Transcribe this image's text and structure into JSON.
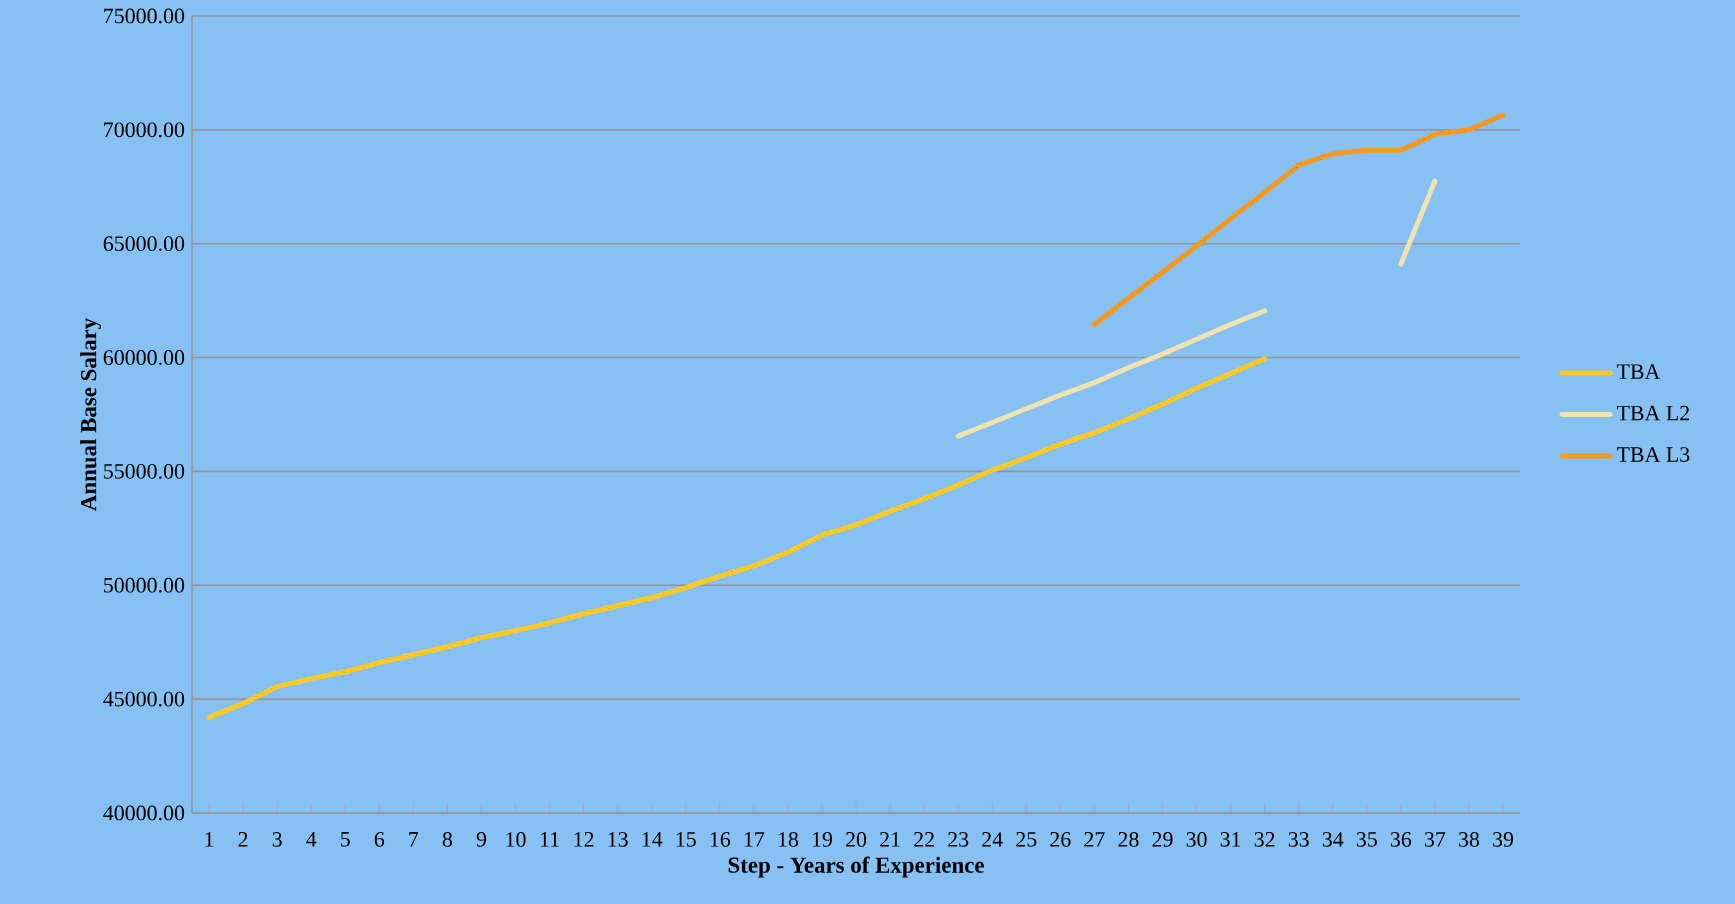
{
  "chart_data": {
    "type": "line",
    "xlabel": "Step - Years of Experience",
    "ylabel": "Annual Base Salary",
    "categories": [
      "1",
      "2",
      "3",
      "4",
      "5",
      "6",
      "7",
      "8",
      "9",
      "10",
      "11",
      "12",
      "13",
      "14",
      "15",
      "16",
      "17",
      "18",
      "19",
      "20",
      "21",
      "22",
      "23",
      "24",
      "25",
      "26",
      "27",
      "28",
      "29",
      "30",
      "31",
      "32",
      "33",
      "34",
      "35",
      "36",
      "37",
      "38",
      "39"
    ],
    "series": [
      {
        "name": "TBA",
        "color": "#fdc922",
        "values": [
          44200,
          44800,
          45550,
          45900,
          46200,
          46600,
          46950,
          47300,
          47700,
          48000,
          48350,
          48750,
          49100,
          49450,
          49900,
          50400,
          50850,
          51450,
          52200,
          52650,
          53250,
          53800,
          54400,
          55050,
          55600,
          56200,
          56700,
          57300,
          57950,
          58650,
          59300,
          59950,
          null,
          null,
          null,
          null,
          null,
          null,
          null
        ]
      },
      {
        "name": "TBA L2",
        "color": "#f0e3b0",
        "values": [
          null,
          null,
          null,
          null,
          null,
          null,
          null,
          null,
          null,
          null,
          null,
          null,
          null,
          null,
          null,
          null,
          null,
          null,
          null,
          null,
          null,
          null,
          56550,
          57150,
          57750,
          58350,
          58900,
          59550,
          60150,
          60800,
          61450,
          62050,
          null,
          null,
          null,
          64100,
          67750,
          null,
          null
        ]
      },
      {
        "name": "TBA L3",
        "color": "#f7991f",
        "values": [
          null,
          null,
          null,
          null,
          null,
          null,
          null,
          null,
          null,
          null,
          null,
          null,
          null,
          null,
          null,
          null,
          null,
          null,
          null,
          null,
          null,
          null,
          null,
          null,
          null,
          null,
          61450,
          62600,
          63750,
          64900,
          66100,
          67250,
          68450,
          68950,
          69100,
          69100,
          69800,
          70000,
          70650
        ]
      }
    ],
    "ylim": [
      40000,
      75000
    ],
    "yticks": [
      {
        "value": 40000,
        "label": "40000.00"
      },
      {
        "value": 45000,
        "label": "45000.00"
      },
      {
        "value": 50000,
        "label": "50000.00"
      },
      {
        "value": 55000,
        "label": "55000.00"
      },
      {
        "value": 60000,
        "label": "60000.00"
      },
      {
        "value": 65000,
        "label": "65000.00"
      },
      {
        "value": 70000,
        "label": "70000.00"
      },
      {
        "value": 75000,
        "label": "75000.00"
      }
    ],
    "grid": "y",
    "legend": "right",
    "marker": "none",
    "line_style": "solid"
  }
}
